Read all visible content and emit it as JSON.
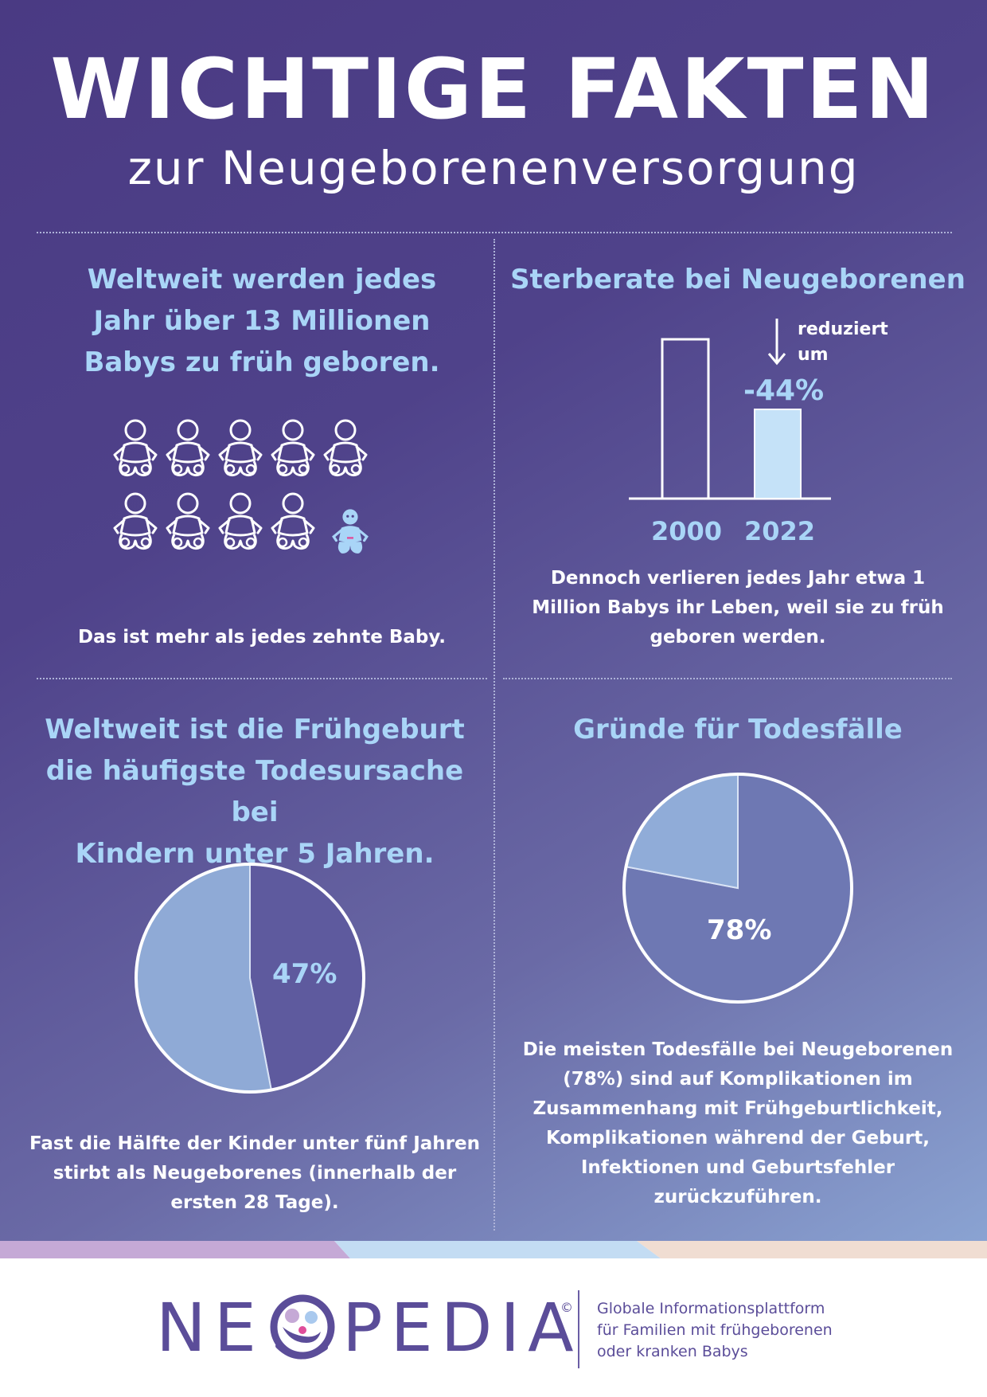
{
  "header": {
    "title": "WICHTIGE FAKTEN",
    "subtitle": "zur Neugeborenenversorgung"
  },
  "q1": {
    "headline": [
      "Weltweit werden jedes",
      "Jahr über 13 Millionen",
      "Babys zu früh geboren."
    ],
    "icon_names": "baby-icon",
    "note": "Das ist mehr als jedes zehnte Baby."
  },
  "q2": {
    "headline": "Sterberate bei Neugeborenen",
    "arrow_label": [
      "reduziert",
      "um"
    ],
    "reduction": "-44%",
    "body": [
      "Dennoch verlieren jedes Jahr etwa 1",
      "Million Babys ihr Leben, weil sie zu früh",
      "geboren werden."
    ]
  },
  "q3": {
    "headline": [
      "Weltweit ist die Frühgeburt",
      "die häufigste Todesursache bei",
      "Kindern unter 5 Jahren."
    ],
    "pie_label": "47%",
    "body": [
      "Fast die Hälfte der Kinder unter fünf Jahren",
      "stirbt als Neugeborenes (innerhalb der",
      "ersten 28 Tage)."
    ]
  },
  "q4": {
    "headline": "Gründe für Todesfälle",
    "pie_label": "78%",
    "body": [
      "Die meisten Todesfälle bei Neugeborenen",
      "(78%) sind auf Komplikationen im",
      "Zusammenhang mit Frühgeburtlichkeit,",
      "Komplikationen während der Geburt,",
      "Infektionen und Geburtsfehler",
      "zurückzuführen."
    ]
  },
  "footer": {
    "logo_left": "NE",
    "logo_right": "PEDIA",
    "copyright": "©",
    "tagline": [
      "Globale Informationsplattform",
      "für Familien mit frühgeborenen",
      "oder kranken Babys"
    ]
  },
  "colors": {
    "accent_light_blue": "#a9d5f7",
    "pie_light": "#8faad6",
    "pie_dark": "#5e5a9e",
    "brand_purple": "#5b4d99"
  },
  "chart_data": [
    {
      "type": "bar",
      "categories": [
        "2000",
        "2022"
      ],
      "values": [
        100,
        56
      ],
      "title": "Sterberate bei Neugeborenen",
      "annotation": "-44%",
      "ylim": [
        0,
        100
      ]
    },
    {
      "type": "pie",
      "slices": [
        {
          "label": "47%",
          "value": 47
        },
        {
          "label": "",
          "value": 53
        }
      ]
    },
    {
      "type": "pie",
      "slices": [
        {
          "label": "78%",
          "value": 78
        },
        {
          "label": "",
          "value": 22
        }
      ]
    }
  ]
}
